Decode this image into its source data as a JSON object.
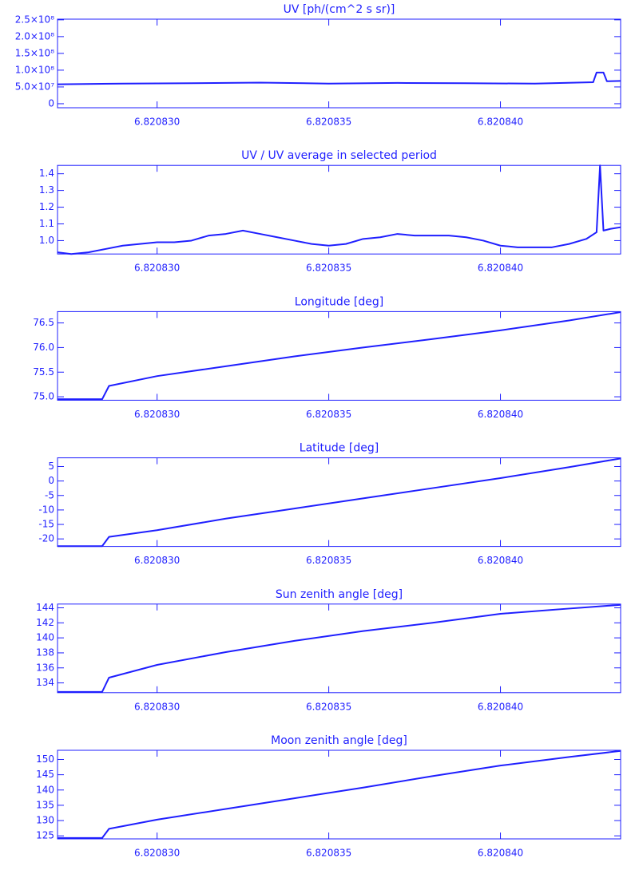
{
  "chart_data": [
    {
      "type": "line",
      "title": "UV [ph/(cm^2 s sr)]",
      "color": "#1f1fff",
      "x": [
        6.8208271,
        6.820829,
        6.820831,
        6.820833,
        6.820835,
        6.820837,
        6.820839,
        6.820841,
        6.8208427,
        6.8208428,
        6.820843,
        6.8208431,
        6.8208435
      ],
      "values": [
        58000000,
        60000000,
        61000000,
        63000000,
        60000000,
        62000000,
        61000000,
        60000000,
        64000000,
        93000000,
        93000000,
        67000000,
        68000000
      ],
      "xlim": [
        6.8208271,
        6.8208435
      ],
      "xticks": [
        {
          "value": 6.82083,
          "label": "6.820830"
        },
        {
          "value": 6.820835,
          "label": "6.820835"
        },
        {
          "value": 6.82084,
          "label": "6.820840"
        }
      ],
      "ylim": [
        -12000000,
        252000000
      ],
      "yticks": [
        0,
        {
          "value": 50000000,
          "label": "5.0×10⁷"
        },
        {
          "value": 100000000,
          "label": "1.0×10⁸"
        },
        {
          "value": 150000000,
          "label": "1.5×10⁸"
        },
        {
          "value": 200000000,
          "label": "2.0×10⁸"
        },
        {
          "value": 250000000,
          "label": "2.5×10⁸"
        }
      ]
    },
    {
      "type": "line",
      "title": "UV / UV average in selected period",
      "color": "#1f1fff",
      "x": [
        6.8208271,
        6.8208275,
        6.820828,
        6.8208285,
        6.820829,
        6.8208295,
        6.82083,
        6.8208305,
        6.820831,
        6.8208315,
        6.820832,
        6.8208325,
        6.820833,
        6.8208335,
        6.820834,
        6.8208345,
        6.820835,
        6.8208355,
        6.820836,
        6.8208365,
        6.820837,
        6.8208375,
        6.820838,
        6.8208385,
        6.820839,
        6.8208395,
        6.82084,
        6.8208405,
        6.820841,
        6.8208415,
        6.820842,
        6.8208425,
        6.8208428,
        6.8208429,
        6.820843,
        6.8208432,
        6.8208435
      ],
      "values": [
        0.93,
        0.92,
        0.93,
        0.95,
        0.97,
        0.98,
        0.99,
        0.99,
        1.0,
        1.03,
        1.04,
        1.06,
        1.04,
        1.02,
        1.0,
        0.98,
        0.97,
        0.98,
        1.01,
        1.02,
        1.04,
        1.03,
        1.03,
        1.03,
        1.02,
        1.0,
        0.97,
        0.96,
        0.96,
        0.96,
        0.98,
        1.01,
        1.05,
        1.45,
        1.06,
        1.07,
        1.08
      ],
      "xlim": [
        6.8208271,
        6.8208435
      ],
      "xticks": [
        {
          "value": 6.82083,
          "label": "6.820830"
        },
        {
          "value": 6.820835,
          "label": "6.820835"
        },
        {
          "value": 6.82084,
          "label": "6.820840"
        }
      ],
      "ylim": [
        0.92,
        1.45
      ],
      "yticks": [
        {
          "value": 1.0,
          "label": "1.0"
        },
        1.1,
        1.2,
        1.3,
        1.4
      ]
    },
    {
      "type": "line",
      "title": "Longitude [deg]",
      "color": "#1f1fff",
      "x": [
        6.8208271,
        6.8208284,
        6.8208286,
        6.82083,
        6.820832,
        6.820834,
        6.820836,
        6.820838,
        6.82084,
        6.820842,
        6.8208435
      ],
      "values": [
        74.95,
        74.95,
        75.22,
        75.42,
        75.62,
        75.82,
        76.0,
        76.17,
        76.35,
        76.55,
        76.72
      ],
      "xlim": [
        6.8208271,
        6.8208435
      ],
      "xticks": [
        {
          "value": 6.82083,
          "label": "6.820830"
        },
        {
          "value": 6.820835,
          "label": "6.820835"
        },
        {
          "value": 6.82084,
          "label": "6.820840"
        }
      ],
      "ylim": [
        74.93,
        76.73
      ],
      "yticks": [
        {
          "value": 75.0,
          "label": "75.0"
        },
        75.5,
        {
          "value": 76.0,
          "label": "76.0"
        },
        76.5
      ]
    },
    {
      "type": "line",
      "title": "Latitude [deg]",
      "color": "#1f1fff",
      "x": [
        6.8208271,
        6.8208284,
        6.8208286,
        6.82083,
        6.820832,
        6.820834,
        6.820836,
        6.820838,
        6.82084,
        6.820842,
        6.8208435
      ],
      "values": [
        -22.5,
        -22.5,
        -19.3,
        -17,
        -13,
        -9.5,
        -6,
        -2.5,
        1,
        4.8,
        7.8
      ],
      "xlim": [
        6.8208271,
        6.8208435
      ],
      "xticks": [
        {
          "value": 6.82083,
          "label": "6.820830"
        },
        {
          "value": 6.820835,
          "label": "6.820835"
        },
        {
          "value": 6.82084,
          "label": "6.820840"
        }
      ],
      "ylim": [
        -22.6,
        8
      ],
      "yticks": [
        -20,
        -15,
        -10,
        -5,
        0,
        5
      ]
    },
    {
      "type": "line",
      "title": "Sun zenith angle [deg]",
      "color": "#1f1fff",
      "x": [
        6.8208271,
        6.8208284,
        6.8208286,
        6.82083,
        6.820832,
        6.820834,
        6.820836,
        6.820838,
        6.82084,
        6.820842,
        6.8208435
      ],
      "values": [
        132.8,
        132.8,
        134.7,
        136.4,
        138.1,
        139.6,
        140.9,
        142.0,
        143.2,
        143.9,
        144.4
      ],
      "xlim": [
        6.8208271,
        6.8208435
      ],
      "xticks": [
        {
          "value": 6.82083,
          "label": "6.820830"
        },
        {
          "value": 6.820835,
          "label": "6.820835"
        },
        {
          "value": 6.82084,
          "label": "6.820840"
        }
      ],
      "ylim": [
        132.7,
        144.5
      ],
      "yticks": [
        134,
        136,
        138,
        140,
        142,
        144
      ]
    },
    {
      "type": "line",
      "title": "Moon zenith angle [deg]",
      "color": "#1f1fff",
      "x": [
        6.8208271,
        6.8208284,
        6.8208286,
        6.82083,
        6.820832,
        6.820834,
        6.820836,
        6.820838,
        6.82084,
        6.820842,
        6.8208435
      ],
      "values": [
        124.3,
        124.3,
        127.3,
        130.3,
        133.8,
        137.3,
        140.8,
        144.5,
        148,
        150.8,
        152.8
      ],
      "xlim": [
        6.8208271,
        6.8208435
      ],
      "xticks": [
        {
          "value": 6.82083,
          "label": "6.820830"
        },
        {
          "value": 6.820835,
          "label": "6.820835"
        },
        {
          "value": 6.82084,
          "label": "6.820840"
        }
      ],
      "ylim": [
        124,
        153
      ],
      "yticks": [
        125,
        130,
        135,
        140,
        145,
        150
      ]
    }
  ]
}
